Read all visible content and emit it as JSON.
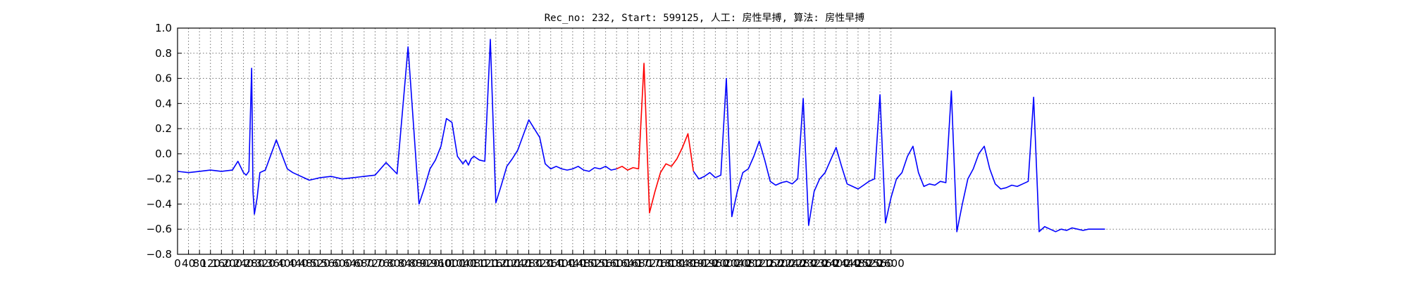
{
  "chart_data": {
    "type": "line",
    "title": "Rec_no: 232, Start: 599125, 人工: 房性早搏, 算法: 房性早搏",
    "xlabel": "",
    "ylabel": "",
    "xlim": [
      0,
      4000
    ],
    "ylim": [
      -0.8,
      1.0
    ],
    "grid": true,
    "y_ticks": [
      1.0,
      0.8,
      0.6,
      0.4,
      0.2,
      0.0,
      -0.2,
      -0.4,
      -0.6,
      -0.8
    ],
    "y_tick_labels": [
      "1.0",
      "0.8",
      "0.6",
      "0.4",
      "0.2",
      "0.0",
      "−0.2",
      "−0.4",
      "−0.6",
      "−0.8"
    ],
    "x_ticks": [
      0,
      40,
      80,
      120,
      160,
      200,
      240,
      280,
      320,
      360,
      400,
      440,
      480,
      520,
      560,
      600,
      640,
      680,
      720,
      760,
      800,
      840,
      880,
      920,
      960,
      1000,
      1040,
      1080,
      1120,
      1160,
      1200,
      1240,
      1280,
      1320,
      1360,
      1400,
      1440,
      1480,
      1520,
      1560,
      1600,
      1640,
      1680,
      1720,
      1760,
      1800,
      1840,
      1880,
      1920,
      1960,
      2000,
      2040,
      2080,
      2120,
      2160,
      2200,
      2240,
      2280,
      2320,
      2360,
      2400,
      2440,
      2480,
      2520,
      2560,
      2600
    ],
    "x_tick_labels": [
      "0",
      "40",
      "80",
      "120",
      "160",
      "200",
      "240",
      "280",
      "320",
      "360",
      "400",
      "440",
      "480",
      "520",
      "560",
      "600",
      "640",
      "680",
      "720",
      "760",
      "800",
      "840",
      "880",
      "920",
      "960",
      "1000",
      "1040",
      "1080",
      "1120",
      "1160",
      "1200",
      "1240",
      "1280",
      "1320",
      "1360",
      "1400",
      "1440",
      "1480",
      "1520",
      "1560",
      "1600",
      "1640",
      "1680",
      "1720",
      "1760",
      "1800",
      "1840",
      "1880",
      "1920",
      "1960",
      "2000",
      "2040",
      "2080",
      "2120",
      "2160",
      "2200",
      "2240",
      "2280",
      "2320",
      "2360",
      "2400",
      "2440",
      "2480",
      "2520",
      "2560",
      "2600"
    ],
    "series": [
      {
        "color": "#0000ff",
        "x": [
          0,
          40,
          80,
          120,
          160,
          200,
          220,
          240,
          250,
          260,
          270,
          275,
          280,
          290,
          300,
          320,
          360,
          400,
          420,
          440,
          460,
          480,
          520,
          560,
          600,
          640,
          680,
          720,
          760,
          800,
          840,
          880,
          900,
          920,
          940,
          960,
          980,
          1000,
          1020,
          1040,
          1050,
          1060,
          1070,
          1080,
          1100,
          1120,
          1140,
          1160,
          1180,
          1200,
          1220,
          1240,
          1280,
          1320,
          1340,
          1350,
          1360,
          1370,
          1380,
          1400,
          1420,
          1440,
          1460,
          1480,
          1500,
          1520,
          1540,
          1560,
          1580,
          1600
        ],
        "y": [
          -0.14,
          -0.15,
          -0.14,
          -0.13,
          -0.14,
          -0.13,
          -0.06,
          -0.15,
          -0.17,
          -0.14,
          0.68,
          -0.3,
          -0.48,
          -0.35,
          -0.15,
          -0.13,
          0.11,
          -0.12,
          -0.15,
          -0.17,
          -0.19,
          -0.21,
          -0.19,
          -0.18,
          -0.2,
          -0.19,
          -0.18,
          -0.17,
          -0.07,
          -0.16,
          0.85,
          -0.4,
          -0.27,
          -0.12,
          -0.05,
          0.06,
          0.28,
          0.25,
          -0.02,
          -0.08,
          -0.05,
          -0.09,
          -0.04,
          -0.02,
          -0.05,
          -0.06,
          0.91,
          -0.39,
          -0.25,
          -0.1,
          -0.04,
          0.03,
          0.27,
          0.13,
          -0.08,
          -0.1,
          -0.12,
          -0.11,
          -0.1,
          -0.12,
          -0.13,
          -0.12,
          -0.1,
          -0.13,
          -0.14,
          -0.11,
          -0.12,
          -0.1,
          -0.13,
          -0.12
        ]
      },
      {
        "color": "#ff0000",
        "x": [
          1600,
          1620,
          1640,
          1660,
          1680,
          1700,
          1720,
          1740,
          1760,
          1780,
          1800,
          1820,
          1840,
          1860,
          1880
        ],
        "y": [
          -0.12,
          -0.1,
          -0.13,
          -0.11,
          -0.12,
          0.72,
          -0.47,
          -0.3,
          -0.15,
          -0.08,
          -0.1,
          -0.04,
          0.05,
          0.16,
          -0.14
        ]
      },
      {
        "color": "#0000ff",
        "x": [
          1880,
          1900,
          1920,
          1940,
          1960,
          1980,
          2000,
          2020,
          2040,
          2060,
          2080,
          2100,
          2120,
          2140,
          2160,
          2180,
          2200,
          2220,
          2240,
          2260,
          2280,
          2300,
          2320,
          2340,
          2360,
          2380,
          2400,
          2420,
          2440,
          2460,
          2480,
          2500,
          2520,
          2540,
          2560,
          2580,
          2600,
          2620,
          2640,
          2660,
          2680,
          2700,
          2720,
          2740,
          2760,
          2780,
          2800,
          2820,
          2840,
          2860,
          2880,
          2900,
          2920,
          2940,
          2960,
          2980,
          3000,
          3020,
          3040,
          3060,
          3080,
          3100,
          3120,
          3140,
          3160,
          3180,
          3200,
          3220,
          3240,
          3260,
          3280,
          3300,
          3320,
          3340,
          3360,
          3380
        ],
        "y": [
          -0.14,
          -0.2,
          -0.18,
          -0.15,
          -0.19,
          -0.17,
          0.6,
          -0.5,
          -0.3,
          -0.15,
          -0.12,
          -0.02,
          0.1,
          -0.05,
          -0.22,
          -0.25,
          -0.23,
          -0.22,
          -0.24,
          -0.2,
          0.44,
          -0.57,
          -0.3,
          -0.2,
          -0.15,
          -0.05,
          0.05,
          -0.1,
          -0.24,
          -0.26,
          -0.28,
          -0.25,
          -0.22,
          -0.2,
          0.47,
          -0.55,
          -0.35,
          -0.2,
          -0.15,
          -0.02,
          0.06,
          -0.15,
          -0.26,
          -0.24,
          -0.25,
          -0.22,
          -0.23,
          0.5,
          -0.62,
          -0.4,
          -0.2,
          -0.12,
          0.0,
          0.06,
          -0.12,
          -0.24,
          -0.28,
          -0.27,
          -0.25,
          -0.26,
          -0.24,
          -0.22,
          0.45,
          -0.62,
          -0.58,
          -0.6,
          -0.62,
          -0.6,
          -0.61,
          -0.59,
          -0.6,
          -0.61,
          -0.6,
          -0.6,
          -0.6,
          -0.6
        ]
      }
    ]
  }
}
